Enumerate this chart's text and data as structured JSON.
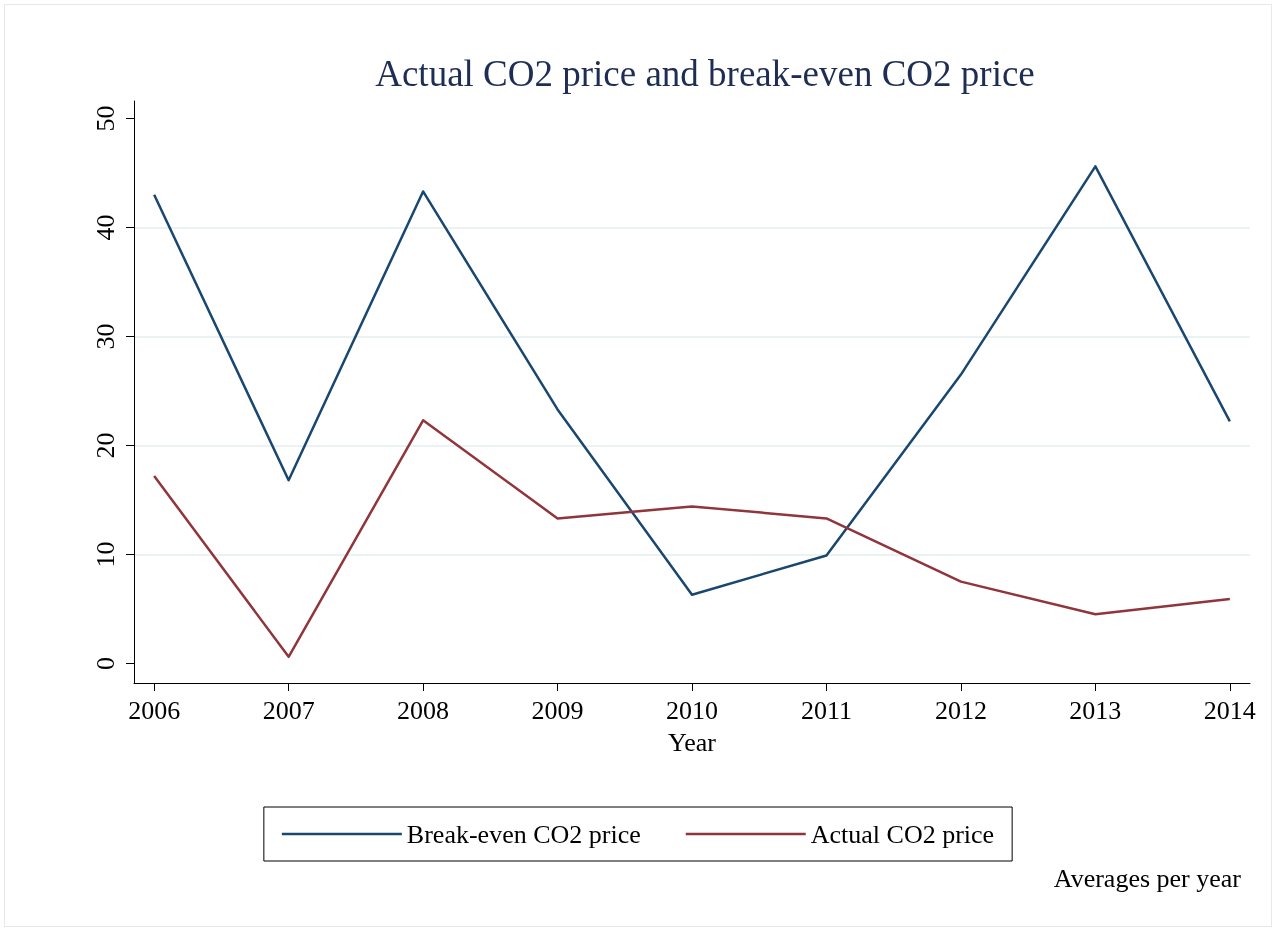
{
  "chart_data": {
    "type": "line",
    "title": "Actual CO2 price and break-even CO2 price",
    "xlabel": "Year",
    "x": [
      2006,
      2007,
      2008,
      2009,
      2010,
      2011,
      2012,
      2013,
      2014
    ],
    "series": [
      {
        "name": "Break-even CO2 price",
        "color": "#1a476f",
        "values": [
          43.0,
          16.8,
          43.3,
          23.3,
          6.3,
          9.9,
          26.5,
          45.6,
          22.2
        ]
      },
      {
        "name": "Actual CO2 price",
        "color": "#90353b",
        "values": [
          17.2,
          0.6,
          22.3,
          13.3,
          14.4,
          13.3,
          7.5,
          4.5,
          5.9
        ]
      }
    ],
    "xlim": [
      2005.85,
      2014.15
    ],
    "xticks": [
      2006,
      2007,
      2008,
      2009,
      2010,
      2011,
      2012,
      2013,
      2014
    ],
    "ylim": [
      -1.8,
      51.6
    ],
    "yticks": [
      0,
      10,
      20,
      30,
      40,
      50
    ],
    "grid": "y",
    "legend": "bottom",
    "annotations": [
      "Averages per year"
    ]
  }
}
